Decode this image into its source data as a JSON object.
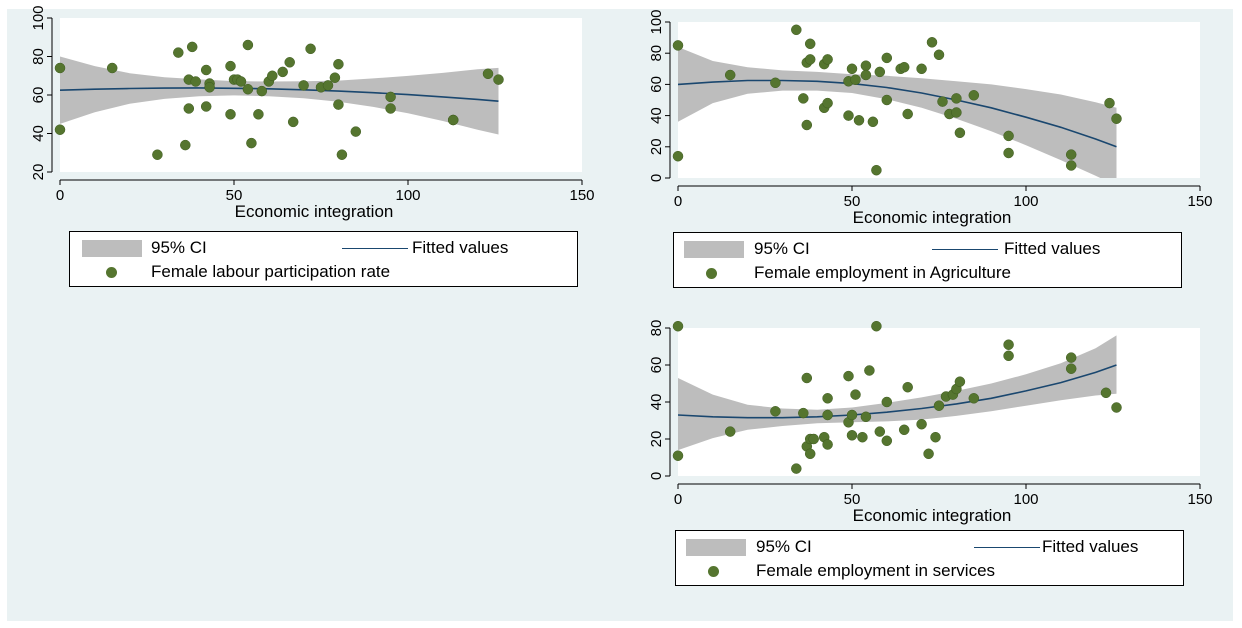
{
  "chart_data": [
    {
      "type": "scatter",
      "title": "",
      "xlabel": "Economic integration",
      "ylabel": "",
      "xlim": [
        0,
        150
      ],
      "ylim": [
        20,
        100
      ],
      "xticks": [
        0,
        50,
        100,
        150
      ],
      "yticks": [
        20,
        40,
        60,
        80,
        100
      ],
      "grid": false,
      "legend_position": "bottom",
      "legend": {
        "ci": "95% CI",
        "fit": "Fitted values",
        "points": "Female labour participation rate"
      },
      "series": [
        {
          "name": "Female labour participation rate",
          "points": [
            [
              0,
              74
            ],
            [
              0,
              42
            ],
            [
              15,
              74
            ],
            [
              28,
              29
            ],
            [
              34,
              82
            ],
            [
              36,
              34
            ],
            [
              37,
              53
            ],
            [
              37,
              68
            ],
            [
              38,
              85
            ],
            [
              39,
              67
            ],
            [
              42,
              73
            ],
            [
              42,
              54
            ],
            [
              43,
              66
            ],
            [
              43,
              64
            ],
            [
              49,
              50
            ],
            [
              49,
              75
            ],
            [
              50,
              68
            ],
            [
              51,
              68
            ],
            [
              52,
              67
            ],
            [
              54,
              86
            ],
            [
              54,
              63
            ],
            [
              55,
              35
            ],
            [
              57,
              50
            ],
            [
              58,
              62
            ],
            [
              60,
              67
            ],
            [
              61,
              70
            ],
            [
              64,
              72
            ],
            [
              66,
              77
            ],
            [
              67,
              46
            ],
            [
              70,
              65
            ],
            [
              72,
              84
            ],
            [
              75,
              64
            ],
            [
              77,
              65
            ],
            [
              79,
              69
            ],
            [
              80,
              76
            ],
            [
              80,
              55
            ],
            [
              81,
              29
            ],
            [
              85,
              41
            ],
            [
              95,
              59
            ],
            [
              95,
              53
            ],
            [
              113,
              47
            ],
            [
              113,
              47
            ],
            [
              123,
              71
            ],
            [
              126,
              68
            ]
          ]
        },
        {
          "name": "Fitted values",
          "x": [
            0,
            10,
            20,
            30,
            40,
            50,
            60,
            70,
            80,
            90,
            100,
            110,
            120,
            126
          ],
          "values": [
            62.5,
            63,
            63.4,
            63.6,
            63.7,
            63.5,
            63.2,
            62.7,
            62,
            61.2,
            60.2,
            59,
            57.7,
            56.8
          ],
          "ci_low": [
            45,
            51,
            55.5,
            58,
            59.3,
            59.8,
            59.4,
            58.3,
            56.5,
            53.8,
            50.5,
            46.5,
            42,
            39.5
          ],
          "ci_high": [
            80,
            75,
            71.3,
            69.2,
            68.1,
            67.2,
            67,
            67.1,
            67.5,
            68.6,
            69.9,
            71.5,
            73.4,
            74.1
          ]
        }
      ]
    },
    {
      "type": "scatter",
      "title": "",
      "xlabel": "Economic integration",
      "ylabel": "",
      "xlim": [
        0,
        150
      ],
      "ylim": [
        0,
        100
      ],
      "xticks": [
        0,
        50,
        100,
        150
      ],
      "yticks": [
        0,
        20,
        40,
        60,
        80,
        100
      ],
      "grid": false,
      "legend_position": "bottom",
      "legend": {
        "ci": "95% CI",
        "fit": "Fitted values",
        "points": "Female employment in Agriculture"
      },
      "series": [
        {
          "name": "Female employment in Agriculture",
          "points": [
            [
              0,
              85
            ],
            [
              0,
              14
            ],
            [
              15,
              66
            ],
            [
              28,
              61
            ],
            [
              34,
              95
            ],
            [
              36,
              51
            ],
            [
              37,
              74
            ],
            [
              37,
              34
            ],
            [
              38,
              86
            ],
            [
              38,
              76
            ],
            [
              42,
              73
            ],
            [
              42,
              45
            ],
            [
              43,
              76
            ],
            [
              43,
              48
            ],
            [
              49,
              40
            ],
            [
              49,
              62
            ],
            [
              50,
              70
            ],
            [
              51,
              63
            ],
            [
              52,
              37
            ],
            [
              54,
              72
            ],
            [
              54,
              66
            ],
            [
              56,
              36
            ],
            [
              57,
              5
            ],
            [
              58,
              68
            ],
            [
              60,
              50
            ],
            [
              60,
              77
            ],
            [
              64,
              70
            ],
            [
              65,
              71
            ],
            [
              66,
              41
            ],
            [
              70,
              70
            ],
            [
              73,
              87
            ],
            [
              75,
              79
            ],
            [
              76,
              49
            ],
            [
              78,
              41
            ],
            [
              80,
              42
            ],
            [
              80,
              51
            ],
            [
              81,
              29
            ],
            [
              85,
              53
            ],
            [
              95,
              27
            ],
            [
              95,
              16
            ],
            [
              113,
              15
            ],
            [
              113,
              8
            ],
            [
              124,
              48
            ],
            [
              126,
              38
            ]
          ]
        },
        {
          "name": "Fitted values",
          "x": [
            0,
            10,
            20,
            30,
            40,
            50,
            60,
            70,
            80,
            90,
            100,
            110,
            120,
            126
          ],
          "values": [
            60,
            61.5,
            62.5,
            62.5,
            62,
            60.5,
            58,
            54.5,
            50,
            45,
            39,
            32.5,
            25,
            20
          ],
          "ci_low": [
            36,
            48,
            54,
            56,
            56,
            54.5,
            50.5,
            45,
            38,
            30,
            21,
            11.5,
            1.5,
            -5
          ],
          "ci_high": [
            84,
            75,
            71,
            69,
            68,
            66.5,
            65.5,
            64,
            62,
            60,
            57,
            53.5,
            48.5,
            45
          ]
        }
      ]
    },
    {
      "type": "scatter",
      "title": "",
      "xlabel": "Economic integration",
      "ylabel": "",
      "xlim": [
        0,
        150
      ],
      "ylim": [
        0,
        80
      ],
      "xticks": [
        0,
        50,
        100,
        150
      ],
      "yticks": [
        0,
        20,
        40,
        60,
        80
      ],
      "grid": false,
      "legend_position": "bottom",
      "legend": {
        "ci": "95% CI",
        "fit": "Fitted values",
        "points": "Female employment in services"
      },
      "series": [
        {
          "name": "Female employment in services",
          "points": [
            [
              0,
              81
            ],
            [
              0,
              11
            ],
            [
              15,
              24
            ],
            [
              28,
              35
            ],
            [
              34,
              4
            ],
            [
              36,
              34
            ],
            [
              37,
              53
            ],
            [
              37,
              16
            ],
            [
              38,
              20
            ],
            [
              38,
              12
            ],
            [
              39,
              20
            ],
            [
              42,
              21
            ],
            [
              43,
              33
            ],
            [
              43,
              42
            ],
            [
              43,
              17
            ],
            [
              49,
              54
            ],
            [
              49,
              29
            ],
            [
              50,
              22
            ],
            [
              50,
              33
            ],
            [
              51,
              44
            ],
            [
              53,
              21
            ],
            [
              54,
              32
            ],
            [
              55,
              57
            ],
            [
              57,
              81
            ],
            [
              58,
              24
            ],
            [
              60,
              19
            ],
            [
              60,
              40
            ],
            [
              65,
              25
            ],
            [
              66,
              48
            ],
            [
              70,
              28
            ],
            [
              72,
              12
            ],
            [
              74,
              21
            ],
            [
              75,
              38
            ],
            [
              77,
              43
            ],
            [
              79,
              44
            ],
            [
              80,
              47
            ],
            [
              81,
              51
            ],
            [
              85,
              42
            ],
            [
              95,
              65
            ],
            [
              95,
              71
            ],
            [
              113,
              64
            ],
            [
              113,
              58
            ],
            [
              123,
              45
            ],
            [
              126,
              37
            ]
          ]
        },
        {
          "name": "Fitted values",
          "x": [
            0,
            10,
            20,
            30,
            40,
            50,
            60,
            70,
            80,
            90,
            100,
            110,
            120,
            126
          ],
          "values": [
            33,
            32,
            31.5,
            31.5,
            32,
            33,
            34.5,
            36.5,
            39,
            42,
            46,
            50.5,
            56,
            60
          ],
          "ci_low": [
            14,
            20.5,
            25,
            27,
            28.5,
            29,
            29.5,
            30.5,
            32.5,
            35,
            38,
            41,
            43.5,
            44.5
          ],
          "ci_high": [
            53,
            44,
            38.5,
            36.5,
            35.8,
            37,
            39.5,
            42.5,
            46,
            50,
            55,
            61,
            69,
            76
          ]
        }
      ]
    }
  ]
}
